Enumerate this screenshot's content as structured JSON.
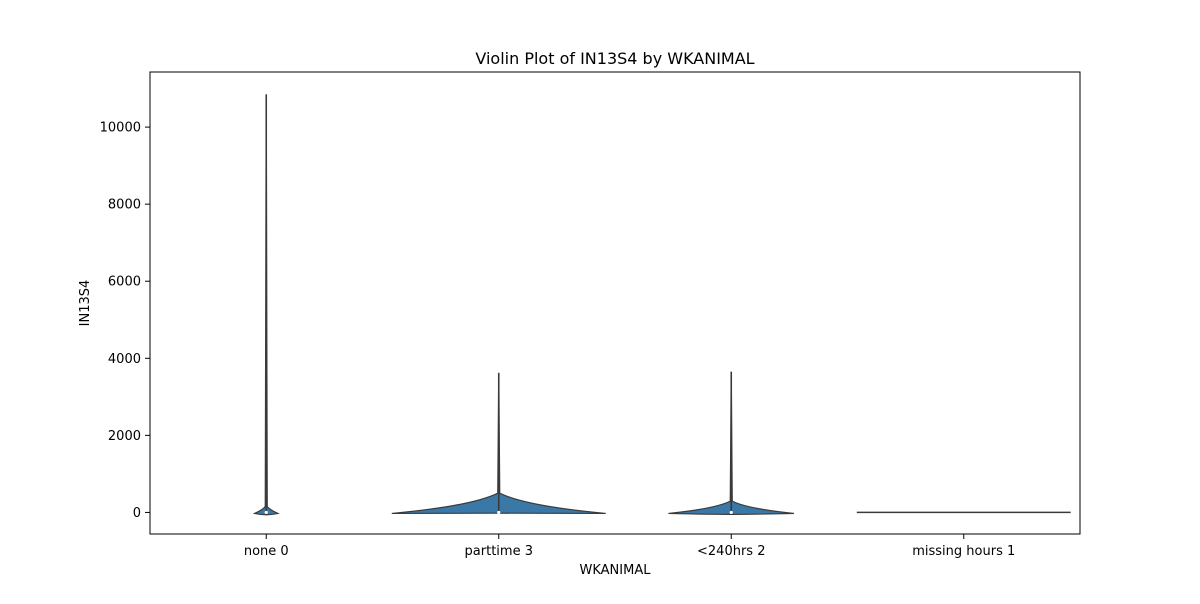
{
  "chart_data": {
    "type": "violin",
    "title": "Violin Plot of IN13S4 by WKANIMAL",
    "xlabel": "WKANIMAL",
    "ylabel": "IN13S4",
    "categories": [
      "none 0",
      "parttime 3",
      "<240hrs 2",
      "missing hours 1"
    ],
    "ylim": [
      -560,
      11430
    ],
    "yticks": [
      0,
      2000,
      4000,
      6000,
      8000,
      10000
    ],
    "ytick_labels": [
      "0",
      "2000",
      "4000",
      "6000",
      "8000",
      "10000"
    ],
    "grid": false,
    "violins": [
      {
        "category": "none 0",
        "min": -60,
        "max": 10850,
        "median": 0,
        "max_half_width": 0.05
      },
      {
        "category": "parttime 3",
        "min": -20,
        "max": 3620,
        "median": 0,
        "max_half_width": 0.46
      },
      {
        "category": "<240hrs 2",
        "min": -50,
        "max": 3650,
        "median": 0,
        "max_half_width": 0.27
      },
      {
        "category": "missing hours 1",
        "min": 0,
        "max": 0,
        "median": 0,
        "max_half_width": 0.46
      }
    ],
    "colors": {
      "fill": "#3a78a8",
      "outline": "#3a3a3a",
      "axis": "#000000"
    }
  }
}
